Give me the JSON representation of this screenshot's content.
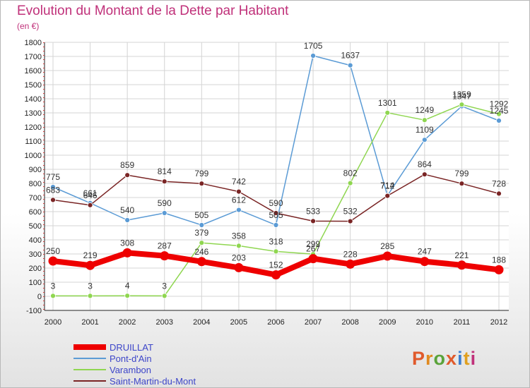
{
  "title": "Evolution du Montant de la Dette par Habitant",
  "subtitle": "(en €)",
  "logo": "Proxiti",
  "colors": {
    "title": "#c0317a",
    "legend_text": "#3d46c9",
    "logo_letters": [
      "#e05a2c",
      "#e08a20",
      "#5aa33a",
      "#e05a2c",
      "#3d7fd0",
      "#e0a020",
      "#c0317a"
    ]
  },
  "chart_data": {
    "type": "line",
    "title": "Evolution du Montant de la Dette par Habitant",
    "ylabel": "(en €)",
    "xlabel": "",
    "x": [
      "2000",
      "2001",
      "2002",
      "2003",
      "2004",
      "2005",
      "2006",
      "2007",
      "2008",
      "2009",
      "2010",
      "2011",
      "2012"
    ],
    "ylim": [
      -100,
      1800
    ],
    "yticks": [
      -100,
      0,
      100,
      200,
      300,
      400,
      500,
      600,
      700,
      800,
      900,
      1000,
      1100,
      1200,
      1300,
      1400,
      1500,
      1600,
      1700,
      1800
    ],
    "grid": true,
    "legend_position": "bottom-left",
    "series": [
      {
        "name": "DRUILLAT",
        "color": "#ee0000",
        "values": [
          250,
          219,
          308,
          287,
          246,
          203,
          152,
          267,
          228,
          285,
          247,
          221,
          188
        ]
      },
      {
        "name": "Pont-d'Ain",
        "color": "#5b9bd5",
        "values": [
          775,
          661,
          540,
          590,
          505,
          612,
          505,
          1705,
          1637,
          714,
          1109,
          1347,
          1245
        ]
      },
      {
        "name": "Varambon",
        "color": "#8fd650",
        "values": [
          3,
          3,
          4,
          3,
          379,
          358,
          318,
          299,
          802,
          1301,
          1249,
          1359,
          1292
        ]
      },
      {
        "name": "Saint-Martin-du-Mont",
        "color": "#7a2525",
        "values": [
          683,
          646,
          859,
          814,
          799,
          742,
          590,
          533,
          532,
          712,
          864,
          799,
          728
        ]
      }
    ]
  }
}
